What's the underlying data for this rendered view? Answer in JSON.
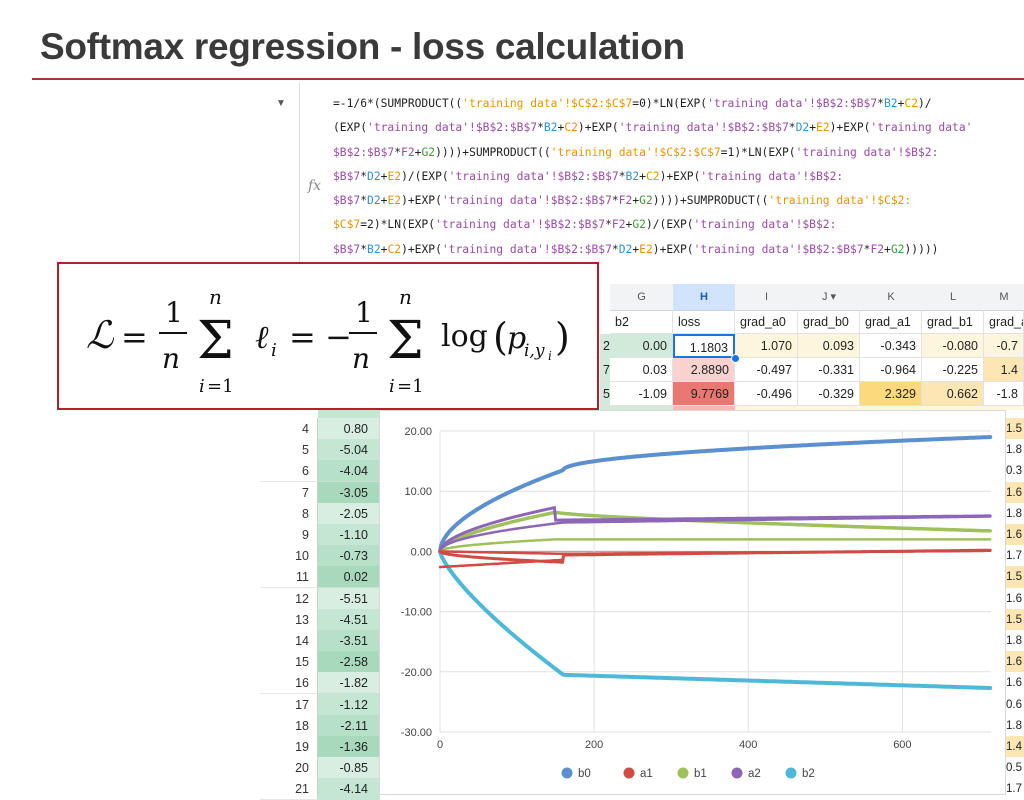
{
  "slide": {
    "title": "Softmax regression - loss calculation"
  },
  "formula_bar": {
    "lines": [
      [
        [
          "=-1/6*(SUMPRODUCT((",
          ""
        ],
        [
          "'training data'!$C$2:$C$7",
          "o"
        ],
        [
          "=0)*LN(EXP(",
          ""
        ],
        [
          "'training data'!$B$2:$B$7",
          "p"
        ],
        [
          "*",
          ""
        ],
        [
          "B2",
          "b"
        ],
        [
          "+",
          ""
        ],
        [
          "C2",
          "o"
        ],
        [
          ")/",
          ""
        ]
      ],
      [
        [
          "(EXP(",
          ""
        ],
        [
          "'training data'!$B$2:$B$7",
          "p"
        ],
        [
          "*",
          ""
        ],
        [
          "B2",
          "b"
        ],
        [
          "+",
          ""
        ],
        [
          "C2",
          "o"
        ],
        [
          ")+EXP(",
          ""
        ],
        [
          "'training data'!$B$2:$B$7",
          "p"
        ],
        [
          "*",
          ""
        ],
        [
          "D2",
          "b"
        ],
        [
          "+",
          ""
        ],
        [
          "E2",
          "o"
        ],
        [
          ")+EXP(",
          ""
        ],
        [
          "'training data'",
          "p"
        ]
      ],
      [
        [
          "$B$2:$B$7",
          "p"
        ],
        [
          "*",
          ""
        ],
        [
          "F2",
          "p"
        ],
        [
          "+",
          ""
        ],
        [
          "G2",
          "g"
        ],
        [
          "))))+SUMPRODUCT((",
          ""
        ],
        [
          "'training data'!$C$2:$C$7",
          "o"
        ],
        [
          "=1)*LN(EXP(",
          ""
        ],
        [
          "'training data'!$B$2:",
          "p"
        ]
      ],
      [
        [
          "$B$7",
          "p"
        ],
        [
          "*",
          ""
        ],
        [
          "D2",
          "b"
        ],
        [
          "+",
          ""
        ],
        [
          "E2",
          "o"
        ],
        [
          ")/(EXP(",
          ""
        ],
        [
          "'training data'!$B$2:$B$7",
          "p"
        ],
        [
          "*",
          ""
        ],
        [
          "B2",
          "b"
        ],
        [
          "+",
          ""
        ],
        [
          "C2",
          "o"
        ],
        [
          ")+EXP(",
          ""
        ],
        [
          "'training data'!$B$2:",
          "p"
        ]
      ],
      [
        [
          "$B$7",
          "p"
        ],
        [
          "*",
          ""
        ],
        [
          "D2",
          "b"
        ],
        [
          "+",
          ""
        ],
        [
          "E2",
          "o"
        ],
        [
          ")+EXP(",
          ""
        ],
        [
          "'training data'!$B$2:$B$7",
          "p"
        ],
        [
          "*",
          ""
        ],
        [
          "F2",
          "p"
        ],
        [
          "+",
          ""
        ],
        [
          "G2",
          "g"
        ],
        [
          "))))+SUMPRODUCT((",
          ""
        ],
        [
          "'training data'!$C$2:",
          "o"
        ]
      ],
      [
        [
          "$C$7",
          "o"
        ],
        [
          "=2)*LN(EXP(",
          ""
        ],
        [
          "'training data'!$B$2:$B$7",
          "p"
        ],
        [
          "*",
          ""
        ],
        [
          "F2",
          "p"
        ],
        [
          "+",
          ""
        ],
        [
          "G2",
          "g"
        ],
        [
          ")/(EXP(",
          ""
        ],
        [
          "'training data'!$B$2:",
          "p"
        ]
      ],
      [
        [
          "$B$7",
          "p"
        ],
        [
          "*",
          ""
        ],
        [
          "B2",
          "b"
        ],
        [
          "+",
          ""
        ],
        [
          "C2",
          "o"
        ],
        [
          ")+EXP(",
          ""
        ],
        [
          "'training data'!$B$2:$B$7",
          "p"
        ],
        [
          "*",
          ""
        ],
        [
          "D2",
          "b"
        ],
        [
          "+",
          ""
        ],
        [
          "E2",
          "o"
        ],
        [
          ")+EXP(",
          ""
        ],
        [
          "'training data'!$B$2:$B$7",
          "p"
        ],
        [
          "*",
          ""
        ],
        [
          "F2",
          "p"
        ],
        [
          "+",
          ""
        ],
        [
          "G2",
          "g"
        ],
        [
          ")))))",
          ""
        ]
      ]
    ]
  },
  "grid": {
    "columns": [
      "G",
      "H",
      "I",
      "J",
      "K",
      "L",
      "M"
    ],
    "headers": [
      "b2",
      "loss",
      "grad_a0",
      "grad_b0",
      "grad_a1",
      "grad_b1",
      "grad_a"
    ],
    "rows": [
      [
        "2",
        "0.00",
        "1.1803",
        "1.070",
        "0.093",
        "-0.343",
        "-0.080",
        "-0.7"
      ],
      [
        "7",
        "0.03",
        "2.8890",
        "-0.497",
        "-0.331",
        "-0.964",
        "-0.225",
        "1.4"
      ],
      [
        "5",
        "-1.09",
        "9.7769",
        "-0.496",
        "-0.329",
        "2.329",
        "0.662",
        "-1.8"
      ]
    ]
  },
  "row_list": {
    "numbers": [
      "4",
      "5",
      "6",
      "7",
      "8",
      "9",
      "10",
      "11",
      "12",
      "13",
      "14",
      "15",
      "16",
      "17",
      "18",
      "19",
      "20",
      "21"
    ],
    "values": [
      "0.80",
      "-5.04",
      "-4.04",
      "-3.05",
      "-2.05",
      "-1.10",
      "-0.73",
      "0.02",
      "-5.51",
      "-4.51",
      "-3.51",
      "-2.58",
      "-1.82",
      "-1.12",
      "-2.11",
      "-1.36",
      "-0.85",
      "-4.14"
    ]
  },
  "right_edge": [
    "1.5",
    "1.8",
    "0.3",
    "1.6",
    "1.8",
    "1.6",
    "1.7",
    "1.5",
    "1.6",
    "1.5",
    "1.8",
    "1.6",
    "1.6",
    "0.6",
    "1.8",
    "1.4",
    "0.5",
    "1.7"
  ],
  "chart_data": {
    "type": "scatter",
    "x_ticks": [
      "0",
      "200",
      "400",
      "600"
    ],
    "y_ticks": [
      "20.00",
      "10.00",
      "0.00",
      "-10.00",
      "-20.00",
      "-30.00"
    ],
    "xlim": [
      0,
      715
    ],
    "ylim": [
      -30,
      20
    ],
    "series": [
      {
        "name": "b0",
        "color": "#5b8fd0"
      },
      {
        "name": "a1",
        "color": "#cf4b43"
      },
      {
        "name": "b1",
        "color": "#9fc15a"
      },
      {
        "name": "a2",
        "color": "#8e66b8"
      },
      {
        "name": "b2",
        "color": "#4db8d8"
      }
    ]
  }
}
